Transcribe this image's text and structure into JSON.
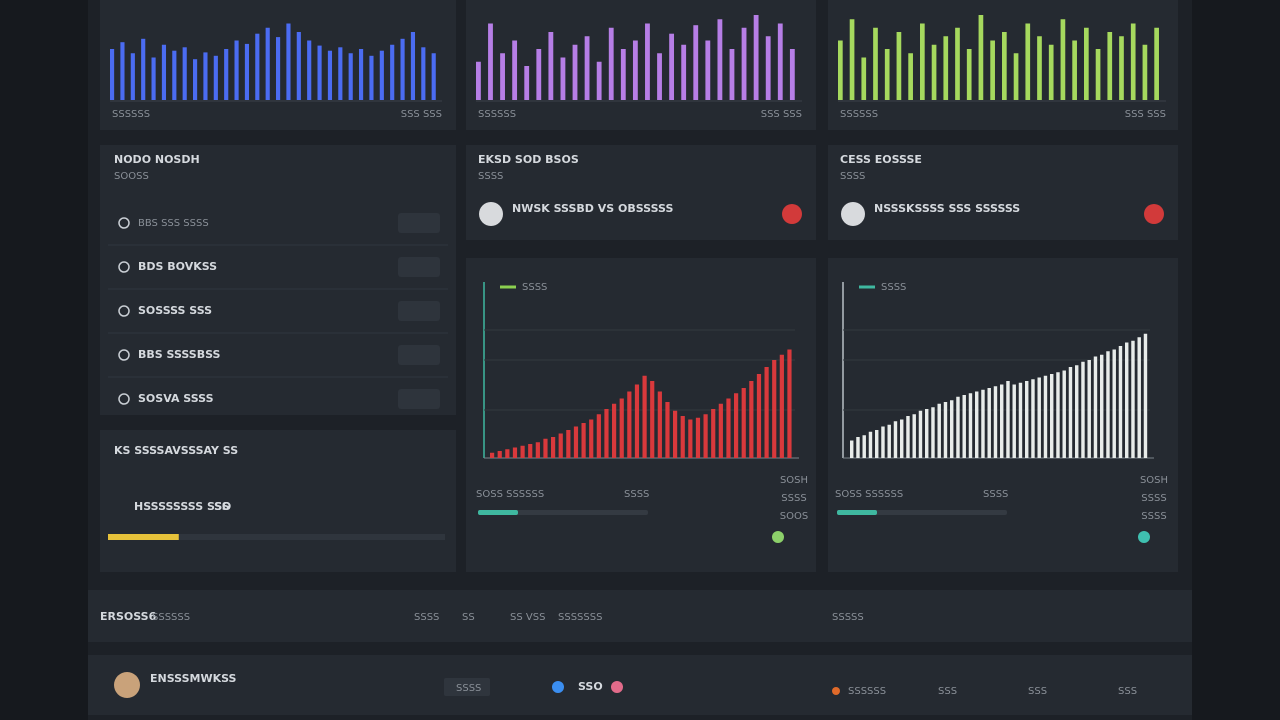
{
  "top_panels": [
    {
      "caption": "SSSSSS",
      "caption_right": "SSS SSS",
      "color": "#4b6cf2",
      "values": [
        60,
        68,
        55,
        72,
        50,
        65,
        58,
        62,
        48,
        56,
        52,
        60,
        70,
        66,
        78,
        85,
        74,
        90,
        80,
        70,
        64,
        58,
        62,
        55,
        60,
        52,
        58,
        65,
        72,
        80,
        62,
        55
      ]
    },
    {
      "caption": "SSSSSS",
      "caption_right": "SSS SSS",
      "color": "#b67ee6",
      "values": [
        45,
        90,
        55,
        70,
        40,
        60,
        80,
        50,
        65,
        75,
        45,
        85,
        60,
        70,
        90,
        55,
        78,
        65,
        88,
        70,
        95,
        60,
        85,
        100,
        75,
        90,
        60
      ]
    },
    {
      "caption": "SSSSSS",
      "caption_right": "SSS SSS",
      "color": "#a6d95e",
      "values": [
        70,
        95,
        50,
        85,
        60,
        80,
        55,
        90,
        65,
        75,
        85,
        60,
        100,
        70,
        80,
        55,
        90,
        75,
        65,
        95,
        70,
        85,
        60,
        80,
        75,
        90,
        65,
        85
      ]
    }
  ],
  "list_panel": {
    "title": "NODO NOSDH",
    "subtitle": "SOOSS",
    "items": [
      "BBS SSS SSSS",
      "BDS BOVKSS",
      "SOSSSS SSS",
      "BBS SSSSBSS",
      "SOSVA SSSS"
    ]
  },
  "status_panels": [
    {
      "title": "EKSD SOD BSOS",
      "subtitle": "SSSS",
      "message": "NWSK SSSBD VS OBSSSSS"
    },
    {
      "title": "CESS EOSSSE",
      "subtitle": "SSSS",
      "message": "NSSSKSSSS SSS SSSSSS"
    }
  ],
  "progress_panel": {
    "title": "KS SSSSAVSSSAY SS",
    "label": "HSSSSSSSS SSS",
    "tag": "SO",
    "progress": 21
  },
  "charts": [
    {
      "legend": "SSSS",
      "color": "#d9393c",
      "footer_left": "SOSS SSSSSS",
      "footer_mid": "SSSS",
      "side": [
        "SOSH",
        "SSSS",
        "SOOS"
      ],
      "values": [
        3,
        4,
        5,
        6,
        7,
        8,
        9,
        11,
        12,
        14,
        16,
        18,
        20,
        22,
        25,
        28,
        31,
        34,
        38,
        42,
        47,
        44,
        38,
        32,
        27,
        24,
        22,
        23,
        25,
        28,
        31,
        34,
        37,
        40,
        44,
        48,
        52,
        56,
        59,
        62
      ]
    },
    {
      "legend": "SSSS",
      "color": "#e8ecea",
      "footer_left": "SOSS SSSSSS",
      "footer_mid": "SSSS",
      "side": [
        "SOSH",
        "SSSS",
        "SSSS"
      ],
      "values": [
        10,
        12,
        13,
        15,
        16,
        18,
        19,
        21,
        22,
        24,
        25,
        27,
        28,
        29,
        31,
        32,
        33,
        35,
        36,
        37,
        38,
        39,
        40,
        41,
        42,
        44,
        42,
        43,
        44,
        45,
        46,
        47,
        48,
        49,
        50,
        52,
        53,
        55,
        56,
        58,
        59,
        61,
        62,
        64,
        66,
        67,
        69,
        71
      ]
    }
  ],
  "footer_bar": {
    "title": "ERSOSS6",
    "subtitle": "SSSSSS",
    "nav": [
      "SSSS",
      "SS",
      "SS VSS",
      "SSSSSSS"
    ],
    "right": "SSSSS"
  },
  "bottom_row": {
    "name": "ENSSSMWKSS",
    "button": "SSSS",
    "count": "SSO",
    "tags": [
      "SSSSSS",
      "SSS",
      "SSS",
      "SSS"
    ]
  }
}
